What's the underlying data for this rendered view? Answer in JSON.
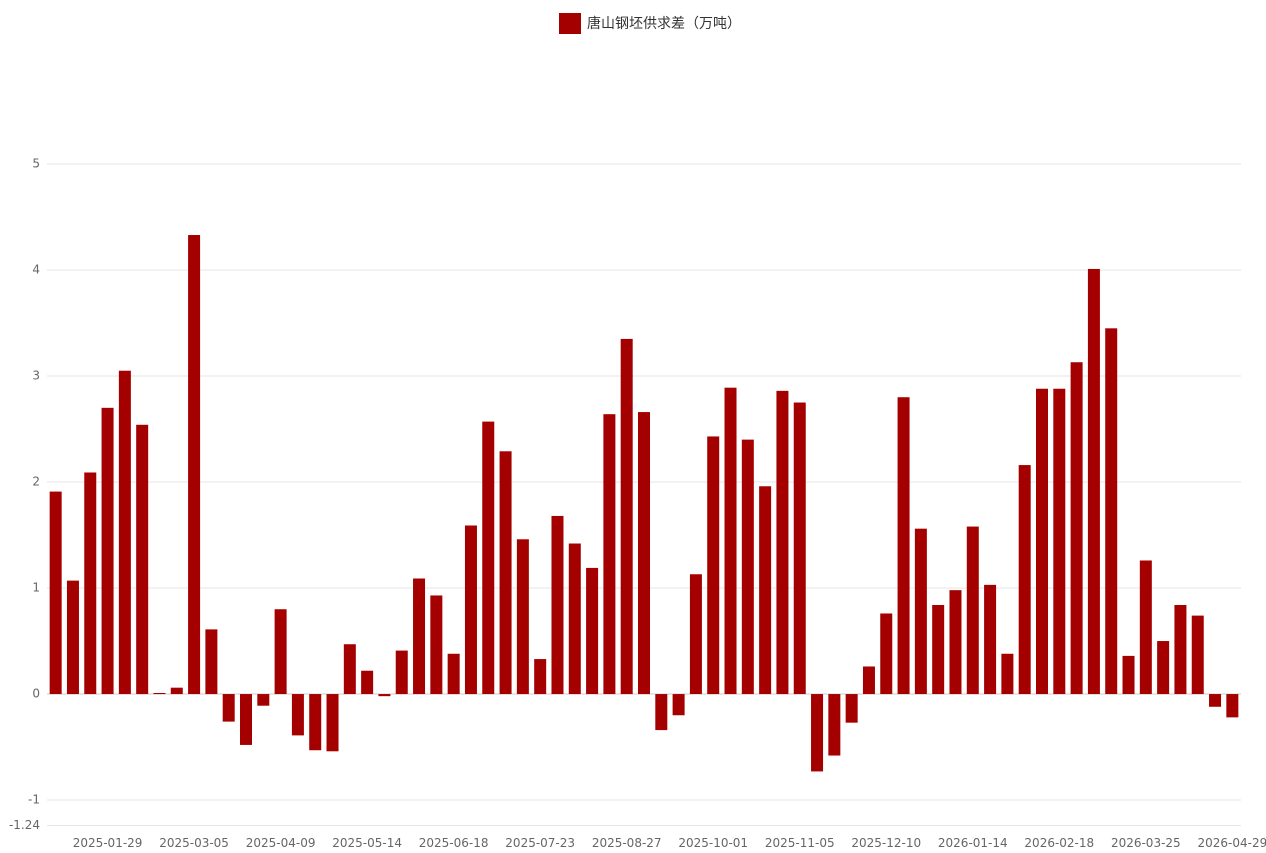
{
  "chart_data": {
    "type": "bar",
    "categories": [
      null,
      null,
      null,
      "2025-01-29",
      null,
      null,
      null,
      null,
      "2025-03-05",
      null,
      null,
      null,
      null,
      "2025-04-09",
      null,
      null,
      null,
      null,
      "2025-05-14",
      null,
      null,
      null,
      null,
      "2025-06-18",
      null,
      null,
      null,
      null,
      "2025-07-23",
      null,
      null,
      null,
      null,
      "2025-08-27",
      null,
      null,
      null,
      null,
      "2025-10-01",
      null,
      null,
      null,
      null,
      "2025-11-05",
      null,
      null,
      null,
      null,
      "2025-12-10",
      null,
      null,
      null,
      null,
      "2026-01-14",
      null,
      null,
      null,
      null,
      "2026-02-18",
      null,
      null,
      null,
      null,
      "2026-03-25",
      null,
      null,
      null,
      null,
      "2026-04-29"
    ],
    "series": [
      {
        "name": "唐山钢坯供求差（万吨）",
        "color": "#a50000",
        "values": [
          1.91,
          1.07,
          2.09,
          2.7,
          3.05,
          2.54,
          0.01,
          0.06,
          4.33,
          0.61,
          -0.26,
          -0.48,
          -0.11,
          0.8,
          -0.39,
          -0.53,
          -0.54,
          0.47,
          0.22,
          -0.02,
          0.41,
          1.09,
          0.93,
          0.38,
          1.59,
          2.57,
          2.29,
          1.46,
          0.33,
          1.68,
          1.42,
          1.19,
          2.64,
          3.35,
          2.66,
          -0.34,
          -0.2,
          1.13,
          2.43,
          2.89,
          2.4,
          1.96,
          2.86,
          2.75,
          -0.73,
          -0.58,
          -0.27,
          0.26,
          0.76,
          2.8,
          1.56,
          0.84,
          0.98,
          1.58,
          1.03,
          0.38,
          2.16,
          2.88,
          2.88,
          3.13,
          4.01,
          3.45,
          0.36,
          1.26,
          0.5,
          0.84,
          0.74,
          -0.12,
          -0.22
        ]
      }
    ],
    "ylim": [
      -1.24,
      5
    ],
    "yticks": [
      -1.24,
      -1,
      0,
      1,
      2,
      3,
      4,
      5
    ],
    "grid": true,
    "legend": "top"
  }
}
